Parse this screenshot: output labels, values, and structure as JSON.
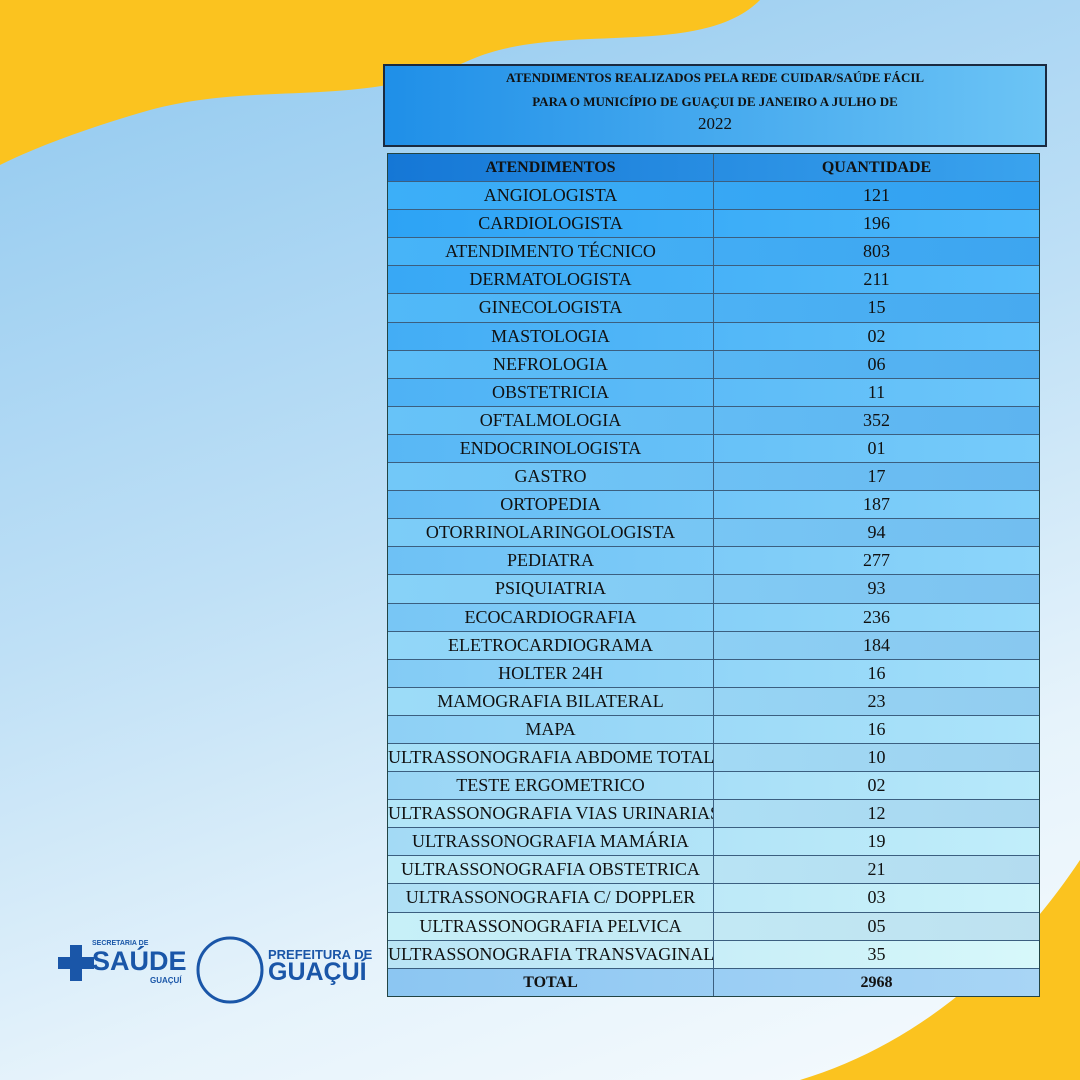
{
  "header": {
    "title_lines": [
      "ATENDIMENTOS REALIZADOS PELA REDE CUIDAR/SAÚDE FÁCIL",
      "PARA O MUNICÍPIO DE GUAÇUI  DE JANEIRO A JULHO DE",
      "2022"
    ]
  },
  "table": {
    "columns": [
      "ATENDIMENTOS",
      "QUANTIDADE"
    ],
    "rows": [
      [
        "ANGIOLOGISTA",
        "121"
      ],
      [
        "CARDIOLOGISTA",
        "196"
      ],
      [
        "ATENDIMENTO TÉCNICO",
        "803"
      ],
      [
        "DERMATOLOGISTA",
        "211"
      ],
      [
        "GINECOLOGISTA",
        "15"
      ],
      [
        "MASTOLOGIA",
        "02"
      ],
      [
        "NEFROLOGIA",
        "06"
      ],
      [
        "OBSTETRICIA",
        "11"
      ],
      [
        "OFTALMOLOGIA",
        "352"
      ],
      [
        "ENDOCRINOLOGISTA",
        "01"
      ],
      [
        "GASTRO",
        "17"
      ],
      [
        "ORTOPEDIA",
        "187"
      ],
      [
        "OTORRINOLARINGOLOGISTA",
        "94"
      ],
      [
        "PEDIATRA",
        "277"
      ],
      [
        "PSIQUIATRIA",
        "93"
      ],
      [
        "ECOCARDIOGRAFIA",
        "236"
      ],
      [
        "ELETROCARDIOGRAMA",
        "184"
      ],
      [
        "HOLTER 24H",
        "16"
      ],
      [
        "MAMOGRAFIA BILATERAL",
        "23"
      ],
      [
        "MAPA",
        "16"
      ],
      [
        "ULTRASSONOGRAFIA ABDOME TOTAL",
        "10"
      ],
      [
        "TESTE ERGOMETRICO",
        "02"
      ],
      [
        "ULTRASSONOGRAFIA VIAS URINARIAS",
        "12"
      ],
      [
        "ULTRASSONOGRAFIA MAMÁRIA",
        "19"
      ],
      [
        "ULTRASSONOGRAFIA OBSTETRICA",
        "21"
      ],
      [
        "ULTRASSONOGRAFIA C/ DOPPLER",
        "03"
      ],
      [
        "ULTRASSONOGRAFIA PELVICA",
        "05"
      ],
      [
        "ULTRASSONOGRAFIA TRANSVAGINAL",
        "35"
      ]
    ],
    "total": [
      "TOTAL",
      "2968"
    ]
  },
  "logos": {
    "saude": {
      "small": "SECRETARIA DE",
      "main": "SAÚDE",
      "sub": "GUAÇUÍ"
    },
    "prefeitura": {
      "small": "PREFEITURA DE",
      "main": "GUAÇUÍ"
    }
  }
}
